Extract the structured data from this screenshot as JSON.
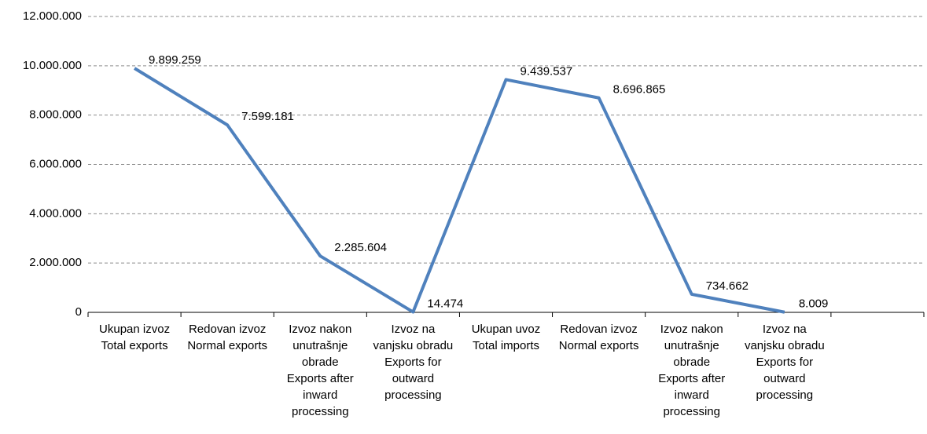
{
  "chart_data": {
    "type": "line",
    "categories": [
      "Ukupan izvoz\nTotal exports",
      "Redovan izvoz\nNormal exports",
      "Izvoz nakon\nunutrašnje\nobrade\nExports after\ninward\nprocessing",
      "Izvoz na\nvanjsku obradu\nExports for\noutward\nprocessing",
      "Ukupan uvoz\nTotal imports",
      "Redovan izvoz\nNormal exports",
      "Izvoz nakon\nunutrašnje\nobrade\nExports after\ninward\nprocessing",
      "Izvoz na\nvanjsku obradu\nExports for\noutward\nprocessing",
      null
    ],
    "series": [
      {
        "color": "#4f81bd",
        "values": [
          9899259,
          7599181,
          2285604,
          14474,
          9439537,
          8696865,
          734662,
          8009,
          null
        ],
        "value_labels": [
          "9.899.259",
          "7.599.181",
          "2.285.604",
          "14.474",
          "9.439.537",
          "8.696.865",
          "734.662",
          "8.009",
          null
        ]
      }
    ],
    "ylim": [
      0,
      12000000
    ],
    "yticks": [
      0,
      {
        "value": 2000000,
        "label": "2.000.000"
      },
      {
        "value": 4000000,
        "label": "4.000.000"
      },
      {
        "value": 6000000,
        "label": "6.000.000"
      },
      {
        "value": 8000000,
        "label": "8.000.000"
      },
      {
        "value": 10000000,
        "label": "10.000.000"
      },
      {
        "value": 12000000,
        "label": "12.000.000"
      }
    ],
    "grid": true
  }
}
